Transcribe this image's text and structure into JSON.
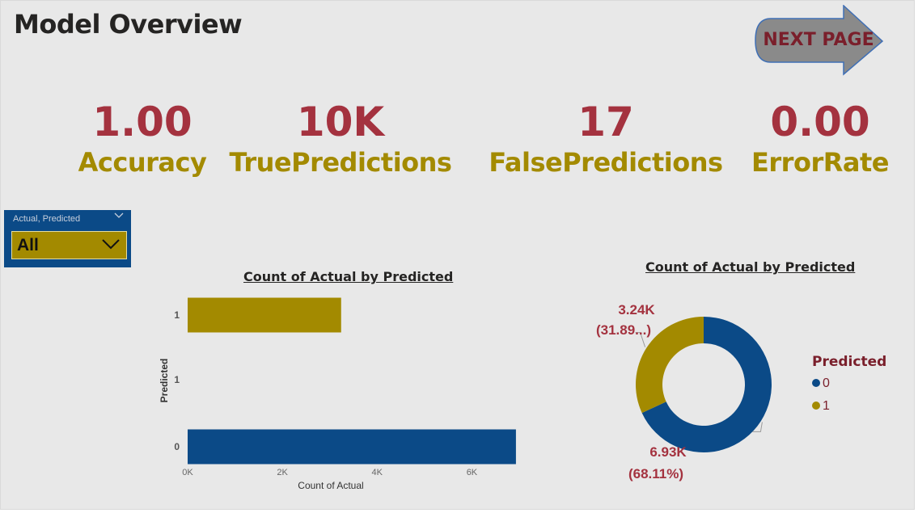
{
  "page": {
    "title": "Model Overview"
  },
  "nav": {
    "next_label": "NEXT PAGE"
  },
  "kpis": [
    {
      "value": "1.00",
      "label": "Accuracy"
    },
    {
      "value": "10K",
      "label": "TruePredictions"
    },
    {
      "value": "17",
      "label": "FalsePredictions"
    },
    {
      "value": "0.00",
      "label": "ErrorRate"
    }
  ],
  "slicer": {
    "title": "Actual, Predicted",
    "value": "All"
  },
  "colors": {
    "class0": "#0b4a87",
    "class1": "#a38a00",
    "kpi_value": "#a4323f",
    "kpi_label": "#a38a00",
    "label_text": "#a4323f"
  },
  "icons": {
    "next": "arrow-right-icon",
    "dropdown": "chevron-down-icon",
    "collapse": "chevron-down-icon"
  },
  "bar_chart": {
    "title": "Count of Actual by Predicted"
  },
  "donut_chart": {
    "title": "Count of Actual by Predicted",
    "legend_title": "Predicted"
  },
  "chart_data": [
    {
      "type": "bar",
      "orientation": "horizontal",
      "title": "Count of Actual by Predicted",
      "xlabel": "Count of Actual",
      "ylabel": "Predicted",
      "categories": [
        "1",
        "1",
        "0"
      ],
      "values": [
        3240,
        0,
        6930
      ],
      "colors": [
        "#a38a00",
        "#a38a00",
        "#0b4a87"
      ],
      "xlim": [
        0,
        7000
      ],
      "xticks": [
        "0K",
        "2K",
        "4K",
        "6K"
      ],
      "xtick_values": [
        0,
        2000,
        4000,
        6000
      ],
      "grid": false,
      "legend": "none"
    },
    {
      "type": "pie",
      "variant": "donut",
      "title": "Count of Actual by Predicted",
      "legend_title": "Predicted",
      "legend_placement": "right",
      "slices": [
        {
          "label": "0",
          "value": 6930,
          "value_label": "6.93K",
          "percent_label": "(68.11%)",
          "color": "#0b4a87"
        },
        {
          "label": "1",
          "value": 3240,
          "value_label": "3.24K",
          "percent_label": "(31.89...)",
          "color": "#a38a00"
        }
      ]
    }
  ]
}
